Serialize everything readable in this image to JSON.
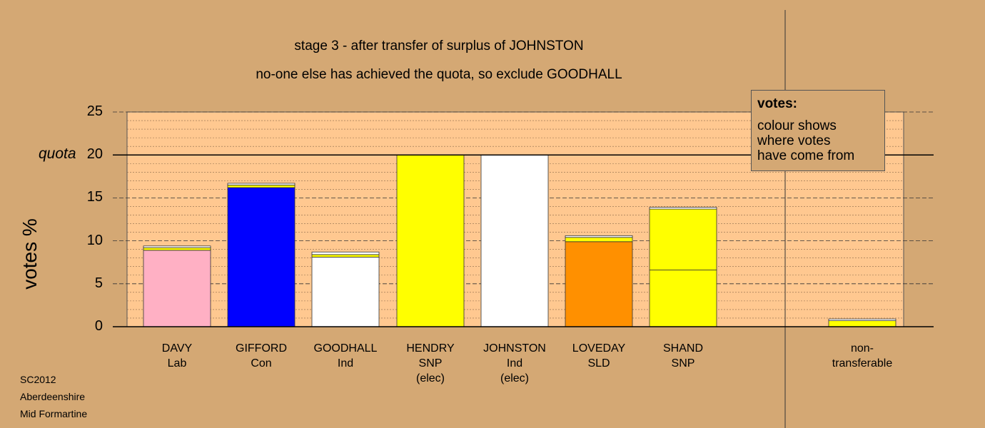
{
  "chart_data": {
    "type": "bar",
    "stacked": true,
    "title": "stage 3 - after transfer of surplus of JOHNSTON",
    "subtitle": "no-one else has achieved the quota, so exclude GOODHALL",
    "ylabel": "votes %",
    "ylim": [
      0,
      25
    ],
    "yticks": [
      0,
      5,
      10,
      15,
      20,
      25
    ],
    "quota": 20,
    "quota_label": "quota",
    "grid": true,
    "categories": [
      {
        "lines": [
          "DAVY",
          "Lab"
        ]
      },
      {
        "lines": [
          "GIFFORD",
          "Con"
        ]
      },
      {
        "lines": [
          "GOODHALL",
          "Ind"
        ]
      },
      {
        "lines": [
          "HENDRY",
          "SNP",
          "(elec)"
        ]
      },
      {
        "lines": [
          "JOHNSTON",
          "Ind",
          "(elec)"
        ]
      },
      {
        "lines": [
          "LOVEDAY",
          "SLD"
        ]
      },
      {
        "lines": [
          "SHAND",
          "SNP"
        ]
      },
      {
        "lines": [
          "non-",
          "transferable"
        ]
      }
    ],
    "stacks": [
      [
        {
          "value": 8.9,
          "color": "#ffb0c4"
        },
        {
          "value": 0.3,
          "color": "#ffff00"
        },
        {
          "value": 0.2,
          "color": "#ffffff"
        }
      ],
      [
        {
          "value": 16.2,
          "color": "#0000ff"
        },
        {
          "value": 0.3,
          "color": "#ffff00"
        },
        {
          "value": 0.2,
          "color": "#ffffff"
        }
      ],
      [
        {
          "value": 8.1,
          "color": "#ffffff"
        },
        {
          "value": 0.3,
          "color": "#ffff00"
        },
        {
          "value": 0.3,
          "color": "#ffffff"
        }
      ],
      [
        {
          "value": 20.0,
          "color": "#ffff00"
        }
      ],
      [
        {
          "value": 20.0,
          "color": "#ffffff"
        }
      ],
      [
        {
          "value": 9.9,
          "color": "#ff9000"
        },
        {
          "value": 0.5,
          "color": "#ffff00"
        },
        {
          "value": 0.2,
          "color": "#ffffff"
        }
      ],
      [
        {
          "value": 6.6,
          "color": "#ffff00"
        },
        {
          "value": 7.1,
          "color": "#ffff00"
        },
        {
          "value": 0.2,
          "color": "#ffffff"
        }
      ],
      [
        {
          "value": 0.7,
          "color": "#ffff00"
        },
        {
          "value": 0.2,
          "color": "#ffffff"
        }
      ]
    ],
    "legend": {
      "title": "votes:",
      "lines": [
        "colour shows",
        "where votes",
        "have come from"
      ]
    }
  },
  "colors": {
    "background": "#d4a874",
    "plot_area": "#ffc890"
  },
  "footer": [
    "SC2012",
    "Aberdeenshire",
    "Mid Formartine"
  ]
}
